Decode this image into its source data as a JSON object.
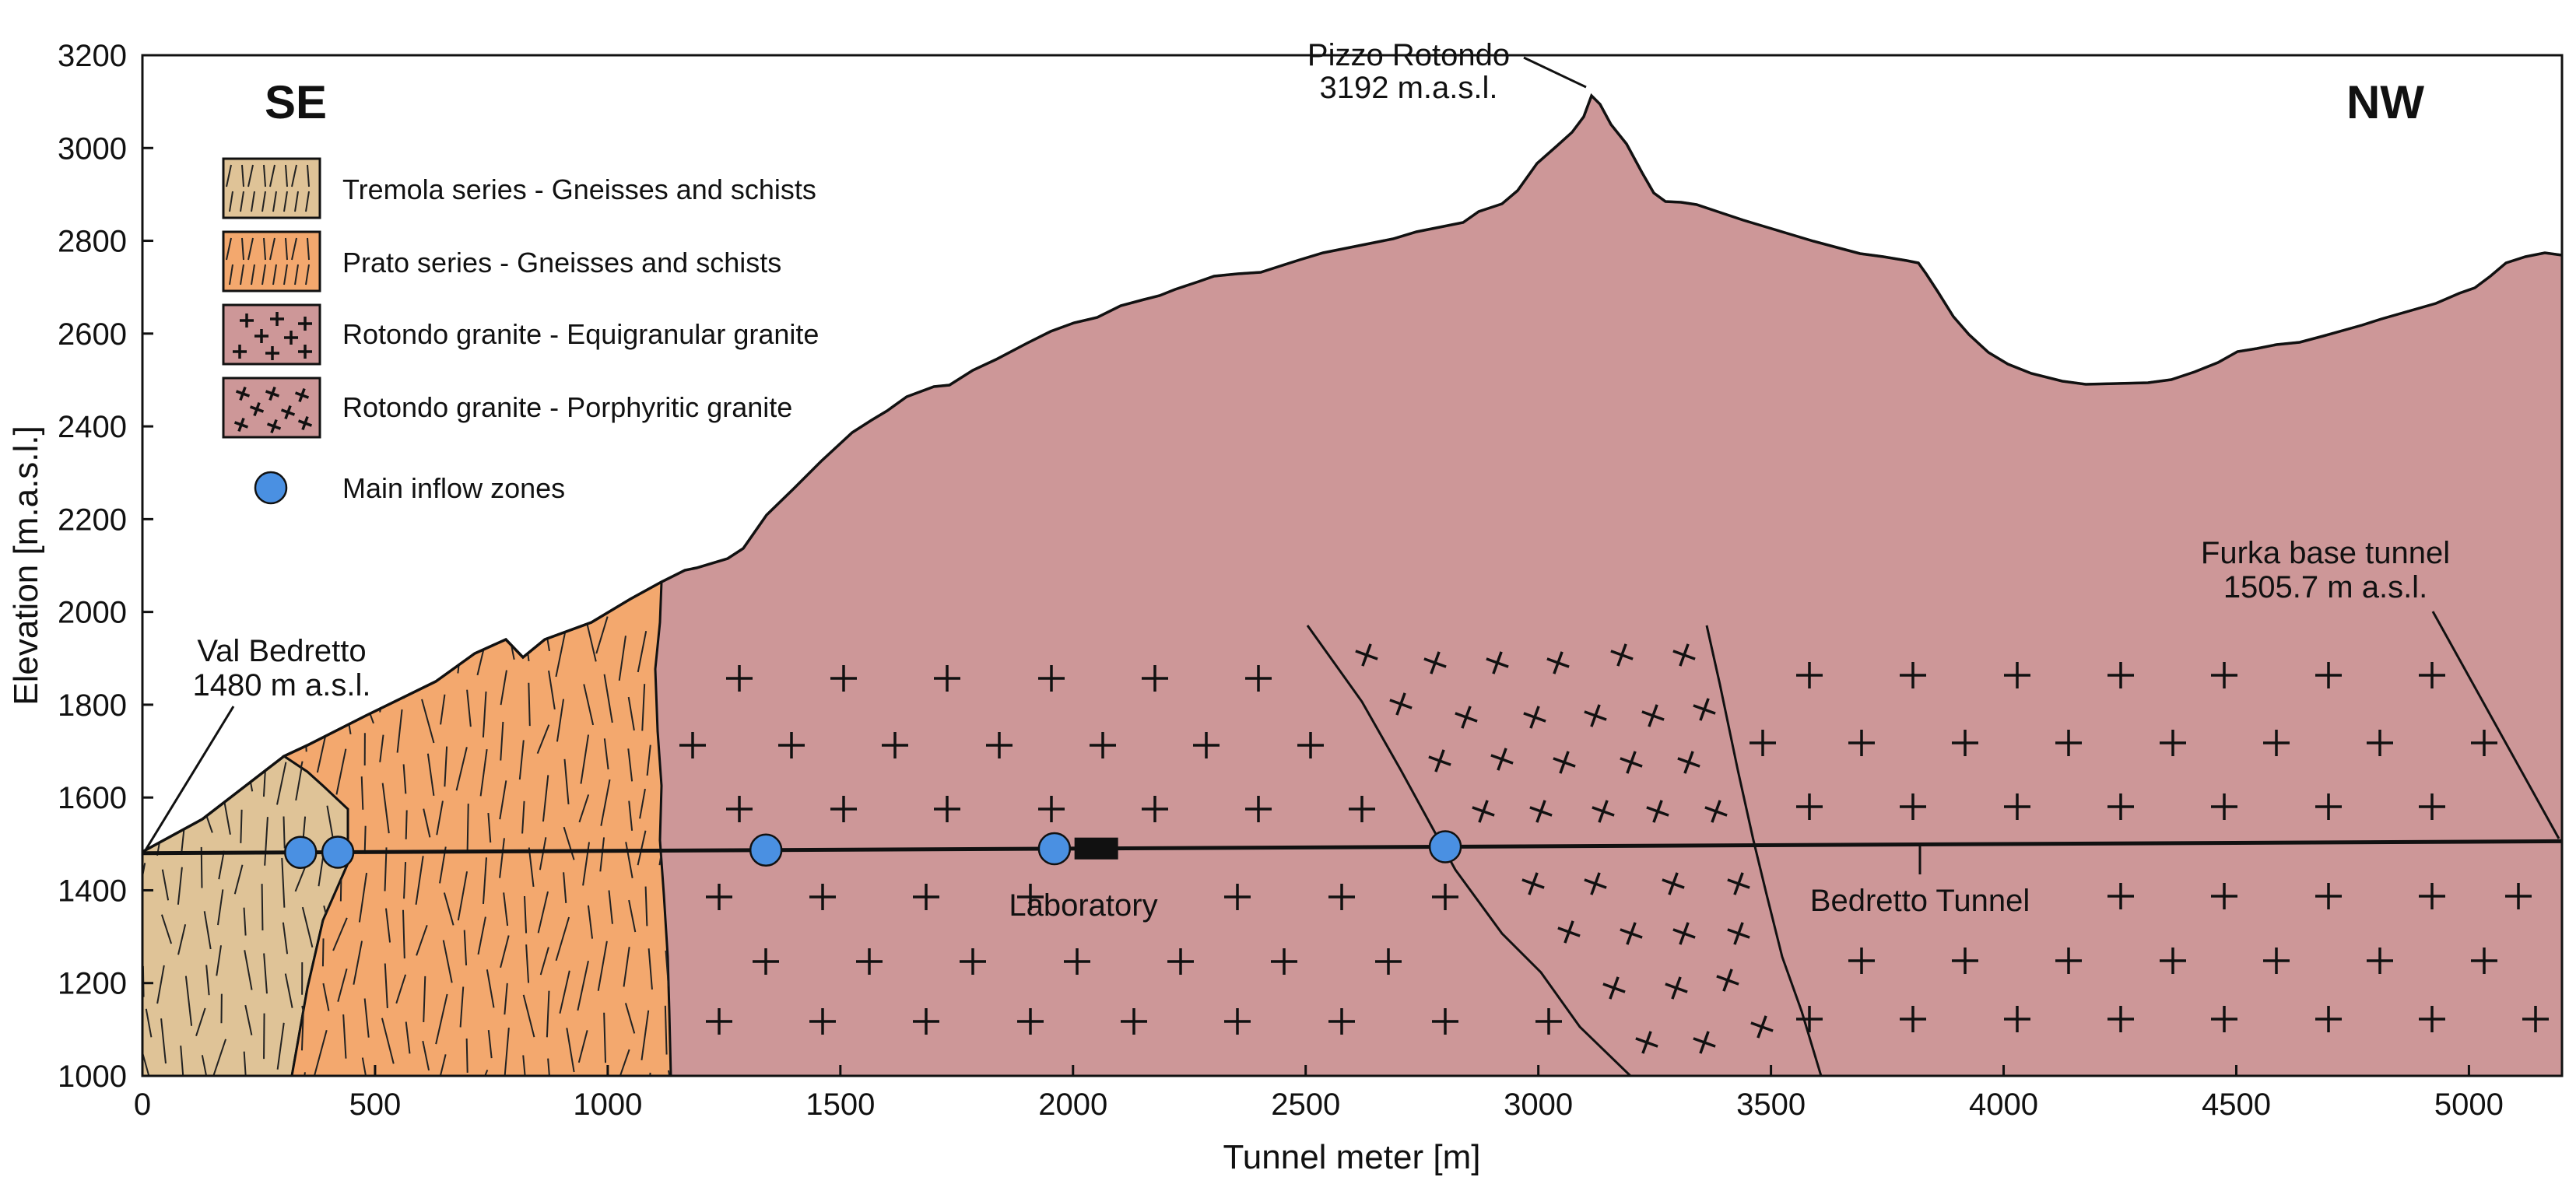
{
  "figure": {
    "direction_left": "SE",
    "direction_right": "NW",
    "x_axis": {
      "title": "Tunnel meter [m]",
      "range": [
        0,
        5200
      ],
      "ticks": [
        0,
        500,
        1000,
        1500,
        2000,
        2500,
        3000,
        3500,
        4000,
        4500,
        5000
      ],
      "tick_labels": [
        "0",
        "500",
        "1000",
        "1500",
        "2000",
        "2500",
        "3000",
        "3500",
        "4000",
        "4500",
        "5000"
      ]
    },
    "y_axis": {
      "title": "Elevation [m.a.s.l.]",
      "range": [
        1000,
        3200
      ],
      "ticks": [
        1000,
        1200,
        1400,
        1600,
        1800,
        2000,
        2200,
        2400,
        2600,
        2800,
        3000,
        3200
      ],
      "tick_labels": [
        "1000",
        "1200",
        "1400",
        "1600",
        "1800",
        "2000",
        "2200",
        "2400",
        "2600",
        "2800",
        "3000",
        "3200"
      ]
    },
    "legend": [
      {
        "label": "Tremola series - Gneisses and schists",
        "color": "#dfc397",
        "pattern": "foliation"
      },
      {
        "label": "Prato series - Gneisses and schists",
        "color": "#f3a86e",
        "pattern": "foliation"
      },
      {
        "label": "Rotondo granite - Equigranular granite",
        "color": "#cd9798",
        "pattern": "crosses"
      },
      {
        "label": "Rotondo granite - Porphyritic granite",
        "color": "#cd9798",
        "pattern": "tilted-crosses"
      },
      {
        "label": "Main inflow zones",
        "color": "#4a90e2",
        "pattern": "circle"
      }
    ],
    "annotations": {
      "peak_name": "Pizzo Rotondo",
      "peak_elev": "3192 m.a.s.l.",
      "valley_name": "Val Bedretto",
      "valley_elev": "1480 m a.s.l.",
      "furka_name": "Furka base tunnel",
      "furka_elev": "1505.7 m a.s.l.",
      "laboratory": "Laboratory",
      "tunnel": "Bedretto Tunnel"
    },
    "colors": {
      "tremola": "#dfc397",
      "prato": "#f3a86e",
      "granite": "#cd9798",
      "inflow": "#4a90e2"
    },
    "inflow_zones_m": [
      340,
      420,
      1340,
      1960,
      2800
    ],
    "laboratory_m": 2050,
    "tunnel_elev_start": 1480,
    "tunnel_elev_end": 1505.7
  }
}
